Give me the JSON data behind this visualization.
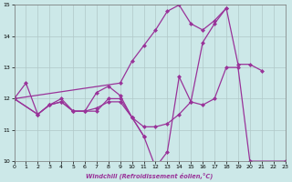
{
  "xlabel": "Windchill (Refroidissement éolien,°C)",
  "line_color": "#993399",
  "bg_color": "#cce8e8",
  "ylim": [
    10,
    15
  ],
  "xlim": [
    0,
    23
  ],
  "yticks": [
    10,
    11,
    12,
    13,
    14,
    15
  ],
  "xticks": [
    0,
    1,
    2,
    3,
    4,
    5,
    6,
    7,
    8,
    9,
    10,
    11,
    12,
    13,
    14,
    15,
    16,
    17,
    18,
    19,
    20,
    21,
    22,
    23
  ],
  "grid_color": "#b0c8c8",
  "markersize": 2.5,
  "linewidth": 0.9,
  "line1_x": [
    0,
    1,
    2,
    3,
    4,
    5,
    6,
    7,
    8,
    9,
    10,
    11,
    12,
    13,
    14,
    15,
    16,
    17,
    18,
    19,
    20,
    21
  ],
  "line1_y": [
    12.0,
    12.5,
    11.5,
    11.8,
    11.9,
    11.6,
    11.6,
    12.2,
    12.4,
    12.1,
    11.4,
    10.8,
    9.8,
    10.3,
    12.7,
    11.9,
    13.8,
    14.4,
    14.9,
    13.1,
    13.1,
    12.9
  ],
  "line2_x": [
    0,
    2,
    3,
    4,
    5,
    6,
    7,
    8,
    9,
    10,
    11,
    12,
    13,
    14,
    15,
    16,
    17,
    18,
    19,
    20,
    23
  ],
  "line2_y": [
    12.0,
    11.5,
    11.8,
    11.9,
    11.6,
    11.6,
    11.7,
    11.9,
    11.9,
    11.4,
    11.1,
    11.1,
    11.2,
    11.5,
    11.9,
    11.8,
    12.0,
    13.0,
    13.0,
    10.0,
    10.0
  ],
  "line3_x": [
    0,
    2,
    3,
    4,
    5,
    6,
    7,
    8,
    9,
    10,
    11
  ],
  "line3_y": [
    12.0,
    11.5,
    11.8,
    12.0,
    11.6,
    11.6,
    11.6,
    12.0,
    12.0,
    11.4,
    10.8
  ],
  "line4_x": [
    0,
    9,
    10,
    11,
    12,
    13,
    14,
    15,
    16,
    17,
    18
  ],
  "line4_y": [
    12.0,
    12.5,
    13.2,
    13.7,
    14.2,
    14.8,
    15.0,
    14.4,
    14.2,
    14.5,
    14.9
  ]
}
